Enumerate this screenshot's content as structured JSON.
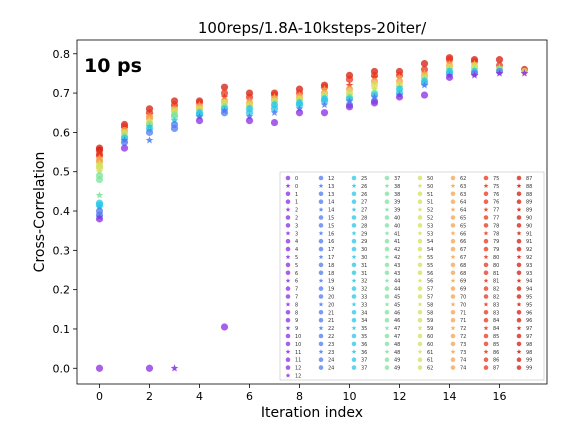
{
  "chart_data": {
    "type": "scatter",
    "title": "100reps/1.8A-10ksteps-20iter/",
    "annotation": "10 ps",
    "xlabel": "Iteration index",
    "ylabel": "Cross-Correlation",
    "xlim": [
      -0.9,
      17.9
    ],
    "ylim": [
      -0.04,
      0.835
    ],
    "xticks": [
      "0",
      "2",
      "4",
      "6",
      "8",
      "10",
      "12",
      "14",
      "16"
    ],
    "yticks": [
      "0.0",
      "0.1",
      "0.2",
      "0.3",
      "0.4",
      "0.5",
      "0.6",
      "0.7",
      "0.8"
    ],
    "grid": false,
    "legend_placement": "lower-right",
    "legend_columns": [
      [
        "0",
        "0",
        "1",
        "1",
        "2",
        "2",
        "3",
        "3",
        "4",
        "4",
        "5",
        "5",
        "6",
        "6",
        "7",
        "7",
        "8",
        "8",
        "9",
        "9",
        "10",
        "10",
        "11",
        "11",
        "12",
        "12"
      ],
      [
        "12",
        "13",
        "13",
        "14",
        "14",
        "15",
        "15",
        "16",
        "16",
        "17",
        "17",
        "18",
        "18",
        "19",
        "19",
        "20",
        "20",
        "21",
        "21",
        "22",
        "22",
        "23",
        "23",
        "24",
        "24"
      ],
      [
        "25",
        "26",
        "26",
        "27",
        "27",
        "28",
        "28",
        "29",
        "29",
        "30",
        "30",
        "31",
        "31",
        "32",
        "32",
        "33",
        "33",
        "34",
        "34",
        "35",
        "35",
        "36",
        "36",
        "37",
        "37"
      ],
      [
        "37",
        "38",
        "38",
        "39",
        "39",
        "40",
        "40",
        "41",
        "41",
        "42",
        "42",
        "43",
        "43",
        "44",
        "44",
        "45",
        "45",
        "46",
        "46",
        "47",
        "47",
        "48",
        "48",
        "49",
        "49"
      ],
      [
        "50",
        "50",
        "51",
        "51",
        "52",
        "52",
        "53",
        "53",
        "54",
        "54",
        "55",
        "55",
        "56",
        "56",
        "57",
        "57",
        "58",
        "58",
        "59",
        "59",
        "60",
        "60",
        "61",
        "61",
        "62"
      ],
      [
        "62",
        "63",
        "63",
        "64",
        "64",
        "65",
        "65",
        "66",
        "66",
        "67",
        "67",
        "68",
        "68",
        "69",
        "69",
        "70",
        "70",
        "71",
        "71",
        "72",
        "72",
        "73",
        "73",
        "74",
        "74"
      ],
      [
        "75",
        "75",
        "76",
        "76",
        "77",
        "77",
        "78",
        "78",
        "79",
        "79",
        "80",
        "80",
        "81",
        "81",
        "82",
        "82",
        "83",
        "83",
        "84",
        "84",
        "85",
        "85",
        "86",
        "86",
        "87"
      ],
      [
        "87",
        "88",
        "88",
        "89",
        "89",
        "90",
        "90",
        "91",
        "91",
        "92",
        "92",
        "93",
        "93",
        "94",
        "94",
        "95",
        "95",
        "96",
        "96",
        "97",
        "97",
        "98",
        "98",
        "99",
        "99"
      ]
    ],
    "colors": {
      "violet": "#8a2be2",
      "blue": "#4f7bf0",
      "cyan": "#28c6e8",
      "green": "#7ee39c",
      "yellow": "#d4e05a",
      "orange": "#f6a34d",
      "red": "#e8341c",
      "red_dark": "#d51a0c"
    },
    "series": [
      {
        "x": 0,
        "values": [
          0.56,
          0.555,
          0.55,
          0.545,
          0.54,
          0.535,
          0.53,
          0.525,
          0.52,
          0.515,
          0.51,
          0.5,
          0.49,
          0.48,
          0.44,
          0.42,
          0.415,
          0.41,
          0.4,
          0.39,
          0.385,
          0.38,
          0.0
        ]
      },
      {
        "x": 1,
        "values": [
          0.62,
          0.615,
          0.61,
          0.605,
          0.6,
          0.595,
          0.59,
          0.585,
          0.58,
          0.575,
          0.56
        ]
      },
      {
        "x": 2,
        "values": [
          0.66,
          0.65,
          0.645,
          0.64,
          0.635,
          0.63,
          0.625,
          0.62,
          0.615,
          0.61,
          0.6,
          0.58,
          0.0
        ]
      },
      {
        "x": 3,
        "values": [
          0.68,
          0.67,
          0.665,
          0.66,
          0.655,
          0.65,
          0.645,
          0.64,
          0.63,
          0.62,
          0.61,
          0.0
        ]
      },
      {
        "x": 4,
        "values": [
          0.68,
          0.675,
          0.67,
          0.665,
          0.66,
          0.655,
          0.65,
          0.645,
          0.64,
          0.63
        ]
      },
      {
        "x": 5,
        "values": [
          0.715,
          0.7,
          0.69,
          0.68,
          0.675,
          0.67,
          0.665,
          0.66,
          0.655,
          0.65,
          0.105
        ]
      },
      {
        "x": 6,
        "values": [
          0.7,
          0.69,
          0.68,
          0.675,
          0.67,
          0.665,
          0.66,
          0.65,
          0.64,
          0.63
        ]
      },
      {
        "x": 7,
        "values": [
          0.7,
          0.695,
          0.69,
          0.685,
          0.68,
          0.675,
          0.67,
          0.66,
          0.65,
          0.625
        ]
      },
      {
        "x": 8,
        "values": [
          0.71,
          0.7,
          0.695,
          0.69,
          0.685,
          0.68,
          0.675,
          0.67,
          0.66,
          0.65
        ]
      },
      {
        "x": 9,
        "values": [
          0.72,
          0.715,
          0.71,
          0.7,
          0.695,
          0.69,
          0.685,
          0.68,
          0.67,
          0.65
        ]
      },
      {
        "x": 10,
        "values": [
          0.745,
          0.735,
          0.72,
          0.71,
          0.7,
          0.695,
          0.69,
          0.685,
          0.68,
          0.67,
          0.665
        ]
      },
      {
        "x": 11,
        "values": [
          0.755,
          0.745,
          0.74,
          0.73,
          0.72,
          0.71,
          0.7,
          0.695,
          0.69,
          0.68,
          0.675
        ]
      },
      {
        "x": 12,
        "values": [
          0.755,
          0.745,
          0.74,
          0.73,
          0.72,
          0.715,
          0.71,
          0.7,
          0.695,
          0.69
        ]
      },
      {
        "x": 13,
        "values": [
          0.775,
          0.76,
          0.75,
          0.745,
          0.74,
          0.735,
          0.73,
          0.725,
          0.72,
          0.695
        ]
      },
      {
        "x": 14,
        "values": [
          0.79,
          0.785,
          0.775,
          0.77,
          0.765,
          0.76,
          0.755,
          0.75,
          0.745,
          0.74
        ]
      },
      {
        "x": 15,
        "values": [
          0.785,
          0.78,
          0.775,
          0.77,
          0.765,
          0.76,
          0.755,
          0.75,
          0.745
        ]
      },
      {
        "x": 16,
        "values": [
          0.785,
          0.77,
          0.765,
          0.76,
          0.755,
          0.75
        ]
      },
      {
        "x": 17,
        "values": [
          0.76,
          0.755,
          0.75
        ]
      }
    ]
  }
}
